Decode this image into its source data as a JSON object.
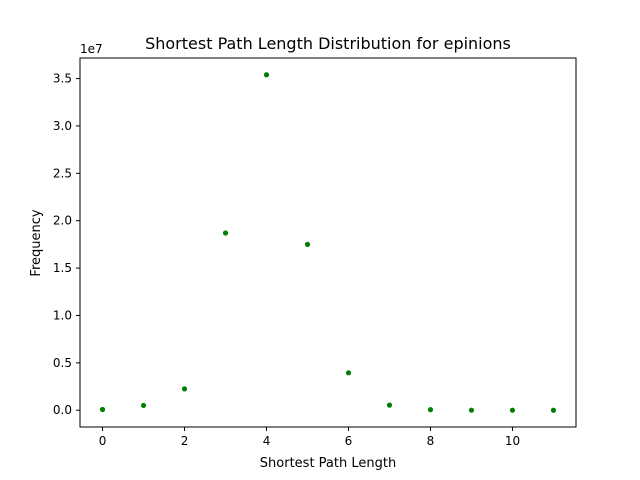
{
  "chart_data": {
    "type": "scatter",
    "title": "Shortest Path Length Distribution for epinions",
    "xlabel": "Shortest Path Length",
    "ylabel": "Frequency",
    "y_offset_label": "1e7",
    "y_scale": 10000000,
    "xlim": [
      -0.55,
      11.55
    ],
    "ylim": [
      -1770000,
      37170000
    ],
    "x_ticks": [
      0,
      2,
      4,
      6,
      8,
      10
    ],
    "x_tick_labels": [
      "0",
      "2",
      "4",
      "6",
      "8",
      "10"
    ],
    "y_ticks": [
      0,
      5000000,
      10000000,
      15000000,
      20000000,
      25000000,
      30000000,
      35000000
    ],
    "y_tick_labels": [
      "0.0",
      "0.5",
      "1.0",
      "1.5",
      "2.0",
      "2.5",
      "3.0",
      "3.5"
    ],
    "grid": false,
    "marker_color": "#008000",
    "x": [
      0,
      1,
      2,
      3,
      4,
      5,
      6,
      7,
      8,
      9,
      10,
      11
    ],
    "y": [
      76000,
      508000,
      2250000,
      18700000,
      35400000,
      17500000,
      3950000,
      540000,
      60000,
      6000,
      600,
      50
    ]
  }
}
